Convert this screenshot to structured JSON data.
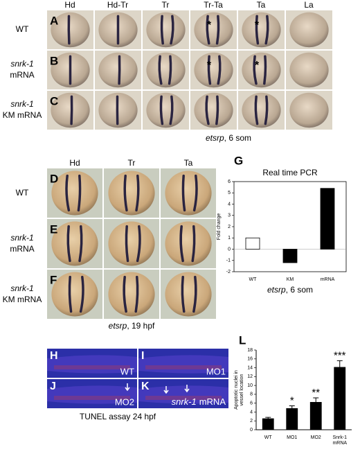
{
  "figure": {
    "top": {
      "letters": [
        "A",
        "B",
        "C"
      ],
      "columns": [
        "Hd",
        "Hd-Tr",
        "Tr",
        "Tr-Ta",
        "Ta",
        "La"
      ],
      "rows": [
        {
          "label": "WT"
        },
        {
          "gene": "snrk-1",
          "label": "mRNA"
        },
        {
          "gene": "snrk-1",
          "label": "KM mRNA"
        }
      ],
      "asterisks": [
        "*",
        "*",
        "*",
        "*"
      ],
      "caption": {
        "gene": "etsrp",
        "rest": ", 6 som"
      }
    },
    "middle": {
      "letters": [
        "D",
        "E",
        "F"
      ],
      "columns": [
        "Hd",
        "Tr",
        "Ta"
      ],
      "rows": [
        {
          "label": "WT"
        },
        {
          "gene": "snrk-1",
          "label": "mRNA"
        },
        {
          "gene": "snrk-1",
          "label": "KM mRNA"
        }
      ],
      "caption": {
        "gene": "etsrp",
        "rest": ", 19 hpf"
      }
    },
    "bottom": {
      "panels": [
        {
          "letter": "H",
          "label": "WT"
        },
        {
          "letter": "I",
          "label": "MO1"
        },
        {
          "letter": "J",
          "label": "MO2"
        },
        {
          "letter": "K",
          "gene": "snrk-1",
          "label": "mRNA"
        }
      ],
      "caption": "TUNEL assay 24 hpf"
    },
    "chart_letters": [
      "G",
      "L"
    ]
  },
  "chart_data": [
    {
      "type": "bar",
      "title": "Real time PCR",
      "ylabel": "Fold change",
      "categories": [
        "WT",
        "KM",
        "mRNA"
      ],
      "values": [
        1,
        -1.2,
        5.4
      ],
      "colors": [
        "#ffffff",
        "#000000",
        "#000000"
      ],
      "ylim": [
        -2,
        6
      ],
      "yticks": [
        -2,
        -1,
        0,
        1,
        2,
        3,
        4,
        5,
        6
      ],
      "xlabel": {
        "gene": "etsrp",
        "rest": ", 6 som"
      }
    },
    {
      "type": "bar",
      "ylabel": "Apoptotic nuclei in vessel location",
      "categories": [
        "WT",
        "MO1",
        "MO2",
        "Snrk-1 mRNA"
      ],
      "values": [
        2.5,
        4.8,
        6.2,
        14.1
      ],
      "errors": [
        0.3,
        0.6,
        1.0,
        1.5
      ],
      "significance": [
        null,
        "*",
        "**",
        "***"
      ],
      "color": "#000000",
      "ylim": [
        0,
        18
      ],
      "yticks": [
        0,
        2,
        4,
        6,
        8,
        10,
        12,
        14,
        16,
        18
      ]
    }
  ]
}
